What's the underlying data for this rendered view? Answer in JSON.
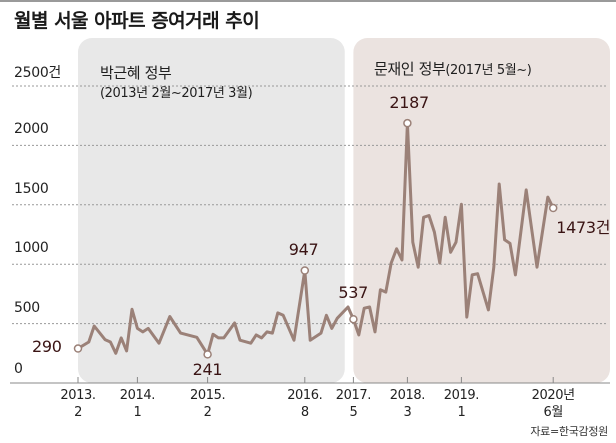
{
  "title": "월별 서울 아파트 증여거래 추이",
  "source": "자료=한국감정원",
  "colors": {
    "line": "#9b8178",
    "park_panel": "#e8e8e8",
    "moon_panel": "#ebe3e0",
    "label": "#3a1414",
    "grid": "#999999"
  },
  "periods": [
    {
      "name": "박근혜 정부",
      "range": "(2013년 2월~2017년 3월)"
    },
    {
      "name": "문재인 정부",
      "range": "(2017년 5월~)"
    }
  ],
  "chart_data": {
    "type": "line",
    "title": "월별 서울 아파트 증여거래 추이",
    "xlabel": "",
    "ylabel": "",
    "ylim": [
      0,
      2500
    ],
    "y_ticks": [
      "0",
      "500",
      "1000",
      "1500",
      "2000",
      "2500건"
    ],
    "y_tick_values": [
      0,
      500,
      1000,
      1500,
      2000,
      2500
    ],
    "grid": true,
    "x_ticks": [
      {
        "month_index": 0,
        "year": "2013.",
        "month": "2"
      },
      {
        "month_index": 11,
        "year": "2014.",
        "month": "1"
      },
      {
        "month_index": 24,
        "year": "2015.",
        "month": "2"
      },
      {
        "month_index": 42,
        "year": "2016.",
        "month": "8"
      },
      {
        "month_index": 51,
        "year": "2017.",
        "month": "5"
      },
      {
        "month_index": 61,
        "year": "2018.",
        "month": "3"
      },
      {
        "month_index": 71,
        "year": "2019.",
        "month": "1"
      },
      {
        "month_index": 88,
        "year": "2020년",
        "month": "6월"
      }
    ],
    "start": "2013-02",
    "series": [
      {
        "name": "서울 아파트 증여거래",
        "unit": "건",
        "points": [
          [
            0,
            290
          ],
          [
            2,
            345
          ],
          [
            3,
            480
          ],
          [
            5,
            365
          ],
          [
            6,
            345
          ],
          [
            7,
            250
          ],
          [
            8,
            380
          ],
          [
            9,
            270
          ],
          [
            10,
            620
          ],
          [
            11,
            460
          ],
          [
            12,
            430
          ],
          [
            13,
            460
          ],
          [
            15,
            335
          ],
          [
            17,
            560
          ],
          [
            19,
            420
          ],
          [
            22,
            385
          ],
          [
            24,
            241
          ],
          [
            25,
            410
          ],
          [
            26,
            380
          ],
          [
            27,
            380
          ],
          [
            29,
            505
          ],
          [
            30,
            360
          ],
          [
            32,
            335
          ],
          [
            33,
            405
          ],
          [
            34,
            380
          ],
          [
            35,
            430
          ],
          [
            36,
            420
          ],
          [
            37,
            590
          ],
          [
            38,
            570
          ],
          [
            40,
            360
          ],
          [
            42,
            947
          ],
          [
            43,
            360
          ],
          [
            45,
            420
          ],
          [
            46,
            570
          ],
          [
            47,
            460
          ],
          [
            48,
            545
          ],
          [
            50,
            640
          ],
          [
            51,
            537
          ],
          [
            52,
            405
          ],
          [
            53,
            630
          ],
          [
            54,
            640
          ],
          [
            55,
            430
          ],
          [
            56,
            785
          ],
          [
            57,
            765
          ],
          [
            58,
            1010
          ],
          [
            59,
            1130
          ],
          [
            60,
            1035
          ],
          [
            61,
            2187
          ],
          [
            62,
            1185
          ],
          [
            63,
            975
          ],
          [
            64,
            1395
          ],
          [
            65,
            1410
          ],
          [
            66,
            1270
          ],
          [
            67,
            1010
          ],
          [
            68,
            1395
          ],
          [
            69,
            1100
          ],
          [
            70,
            1185
          ],
          [
            71,
            1505
          ],
          [
            72,
            555
          ],
          [
            73,
            910
          ],
          [
            74,
            920
          ],
          [
            76,
            615
          ],
          [
            77,
            975
          ],
          [
            78,
            1675
          ],
          [
            79,
            1205
          ],
          [
            80,
            1175
          ],
          [
            81,
            910
          ],
          [
            83,
            1625
          ],
          [
            85,
            975
          ],
          [
            87,
            1565
          ],
          [
            88,
            1473
          ]
        ]
      }
    ],
    "annotations": [
      {
        "month_index": 0,
        "value": 290,
        "label": "290"
      },
      {
        "month_index": 24,
        "value": 241,
        "label": "241"
      },
      {
        "month_index": 42,
        "value": 947,
        "label": "947"
      },
      {
        "month_index": 51,
        "value": 537,
        "label": "537"
      },
      {
        "month_index": 61,
        "value": 2187,
        "label": "2187"
      },
      {
        "month_index": 88,
        "value": 1473,
        "label": "1473건"
      }
    ]
  }
}
